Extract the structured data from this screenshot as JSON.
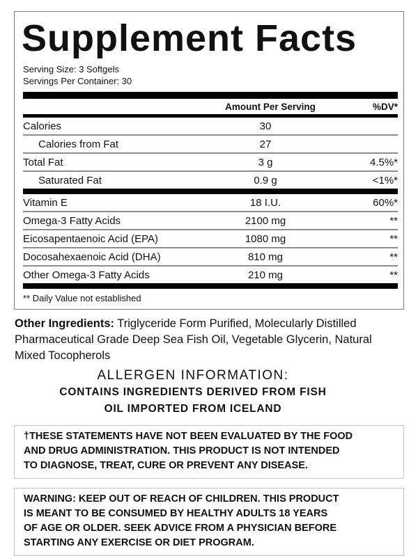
{
  "label": {
    "title": "Supplement Facts",
    "serving_size": "Serving Size: 3 Softgels",
    "servings_per_container": "Servings Per Container: 30",
    "columns": {
      "amount": "Amount Per Serving",
      "dv": "%DV*"
    },
    "rows": [
      {
        "name": "Calories",
        "amount": "30",
        "dv": "",
        "indent": false,
        "rule_after": "thin"
      },
      {
        "name": "Calories from Fat",
        "amount": "27",
        "dv": "",
        "indent": true,
        "rule_after": "thin"
      },
      {
        "name": "Total Fat",
        "amount": "3 g",
        "dv": "4.5%*",
        "indent": false,
        "rule_after": "thin"
      },
      {
        "name": "Saturated Fat",
        "amount": "0.9 g",
        "dv": "<1%*",
        "indent": true,
        "rule_after": "thick"
      },
      {
        "name": "Vitamin E",
        "amount": "18 I.U.",
        "dv": "60%*",
        "indent": false,
        "rule_after": "thin"
      },
      {
        "name": "Omega-3 Fatty Acids",
        "amount": "2100 mg",
        "dv": "**",
        "indent": false,
        "rule_after": "thin"
      },
      {
        "name": "Eicosapentaenoic Acid (EPA)",
        "amount": "1080 mg",
        "dv": "**",
        "indent": false,
        "rule_after": "thin"
      },
      {
        "name": "Docosahexaenoic Acid (DHA)",
        "amount": "810 mg",
        "dv": "**",
        "indent": false,
        "rule_after": "thin"
      },
      {
        "name": "Other Omega-3 Fatty Acids",
        "amount": "210 mg",
        "dv": "**",
        "indent": false,
        "rule_after": "thick"
      }
    ],
    "footnote": "** Daily Value not established"
  },
  "other_ingredients": {
    "lead": "Other Ingredients:",
    "text": " Triglyceride Form Purified, Molecularly Distilled Pharmaceutical Grade Deep Sea Fish Oil, Vegetable Glycerin, Natural Mixed Tocopherols"
  },
  "allergen": {
    "heading": "ALLERGEN INFORMATION:",
    "lines": [
      "CONTAINS INGREDIENTS DERIVED FROM FISH",
      "OIL IMPORTED FROM ICELAND"
    ]
  },
  "disclaimer": {
    "lines": [
      "†THESE STATEMENTS HAVE NOT BEEN EVALUATED BY THE FOOD",
      "AND DRUG ADMINISTRATION. THIS PRODUCT IS NOT INTENDED",
      "TO DIAGNOSE, TREAT, CURE OR PREVENT ANY DISEASE."
    ]
  },
  "warning": {
    "lines": [
      "WARNING: KEEP OUT OF REACH OF CHILDREN. THIS PRODUCT",
      "IS MEANT TO BE CONSUMED BY HEALTHY ADULTS 18 YEARS",
      "OF AGE OR OLDER. SEEK ADVICE FROM A PHYSICIAN BEFORE",
      "STARTING ANY EXERCISE OR DIET PROGRAM."
    ]
  },
  "colors": {
    "text": "#111111",
    "section_bar": "#000000",
    "thin_rule": "#8c8c8c",
    "panel_border": "#7d7d7d",
    "notice_border": "#b9c6d3",
    "background": "#ffffff"
  }
}
